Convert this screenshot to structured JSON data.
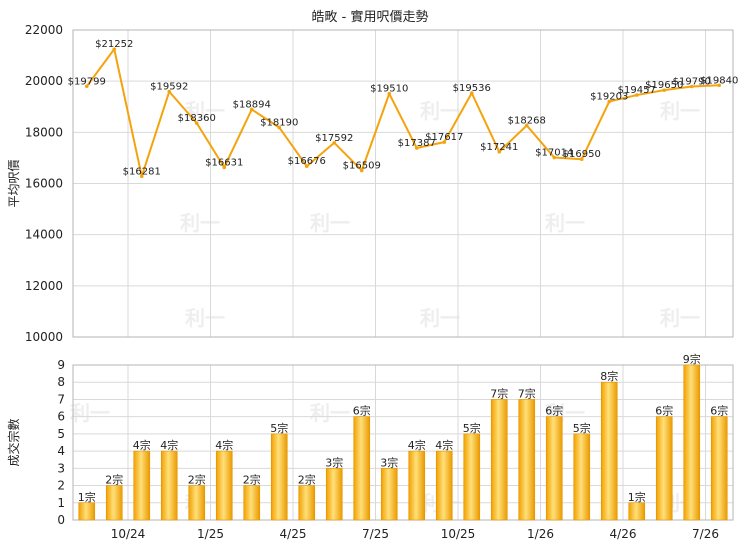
{
  "title": "皓畋 - 實用呎價走勢",
  "chart_data": [
    {
      "type": "line",
      "ylabel": "平均呎價",
      "ylim": [
        10000,
        22000
      ],
      "yticks": [
        10000,
        12000,
        14000,
        16000,
        18000,
        20000,
        22000
      ],
      "color": "#f5a30c",
      "values": [
        19799,
        21252,
        16281,
        19592,
        18360,
        16631,
        18894,
        18190,
        16676,
        17592,
        16509,
        19510,
        17387,
        17617,
        19536,
        17241,
        18268,
        17014,
        16950,
        19203,
        19457,
        19650,
        19790,
        19840
      ],
      "labels": [
        "$19799",
        "$21252",
        "$16281",
        "$19592",
        "$18360",
        "$16631",
        "$18894",
        "$18190",
        "$16676",
        "$17592",
        "$16509",
        "$19510",
        "$17387",
        "$17617",
        "$19536",
        "$17241",
        "$18268",
        "$17014",
        "$16950",
        "$19203",
        "$19457",
        "$19650",
        "$19790",
        "$19840"
      ]
    },
    {
      "type": "bar",
      "ylabel": "成交宗數",
      "ylim": [
        0,
        9
      ],
      "yticks": [
        0,
        1,
        2,
        3,
        4,
        5,
        6,
        7,
        8,
        9
      ],
      "values": [
        1,
        2,
        4,
        4,
        2,
        4,
        2,
        5,
        2,
        3,
        6,
        3,
        4,
        4,
        5,
        7,
        7,
        6,
        5,
        8,
        1,
        6,
        9,
        6
      ],
      "labels": [
        "1宗",
        "2宗",
        "4宗",
        "4宗",
        "2宗",
        "4宗",
        "2宗",
        "5宗",
        "2宗",
        "3宗",
        "6宗",
        "3宗",
        "4宗",
        "4宗",
        "5宗",
        "7宗",
        "7宗",
        "6宗",
        "5宗",
        "8宗",
        "1宗",
        "6宗",
        "9宗",
        "6宗"
      ],
      "xtick_labels": [
        "10/24",
        "1/25",
        "4/25",
        "7/25",
        "10/25",
        "1/26",
        "4/26",
        "7/26"
      ],
      "xtick_positions": [
        2,
        5,
        8,
        11,
        14,
        17,
        20,
        23
      ]
    }
  ],
  "watermark": "利一"
}
